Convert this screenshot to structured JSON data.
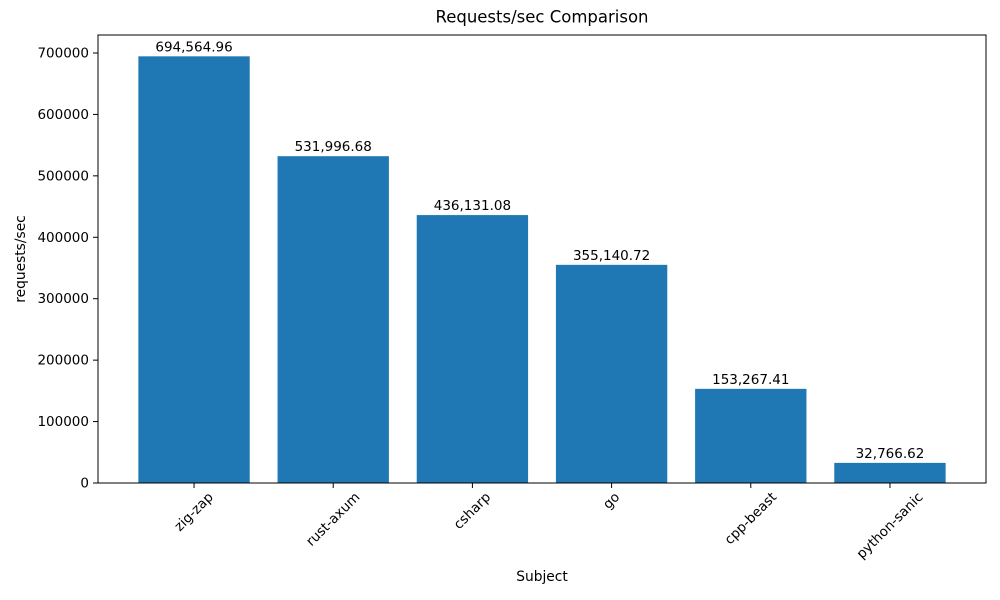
{
  "chart_data": {
    "type": "bar",
    "title": "Requests/sec Comparison",
    "xlabel": "Subject",
    "ylabel": "requests/sec",
    "categories": [
      "zig-zap",
      "rust-axum",
      "csharp",
      "go",
      "cpp-beast",
      "python-sanic"
    ],
    "values": [
      694564.96,
      531996.68,
      436131.08,
      355140.72,
      153267.41,
      32766.62
    ],
    "value_labels": [
      "694,564.96",
      "531,996.68",
      "436,131.08",
      "355,140.72",
      "153,267.41",
      "32,766.62"
    ],
    "yticks": [
      0,
      100000,
      200000,
      300000,
      400000,
      500000,
      600000,
      700000
    ],
    "ytick_labels": [
      "0",
      "100000",
      "200000",
      "300000",
      "400000",
      "500000",
      "600000",
      "700000"
    ],
    "ylim": [
      0,
      729293
    ],
    "x_tick_rotation": 45,
    "grid": false,
    "legend": null,
    "bar_color": "#1f77b4",
    "axis_color": "#000000",
    "text_color": "#000000",
    "background": "#ffffff"
  }
}
